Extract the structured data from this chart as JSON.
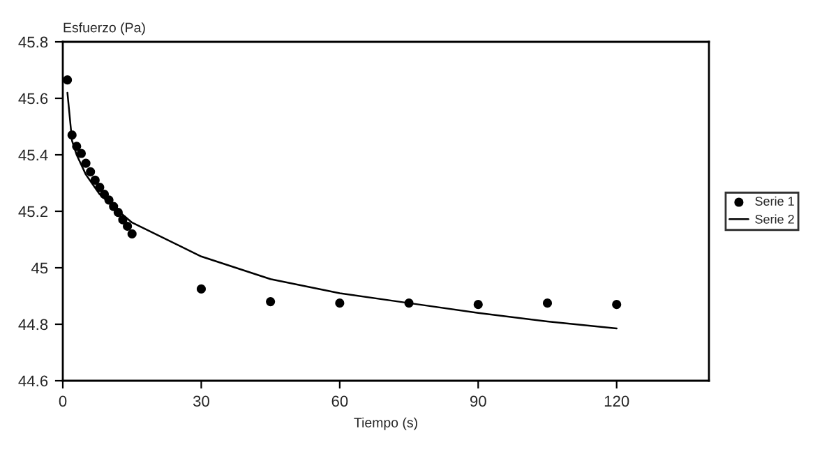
{
  "chart_data": {
    "type": "scatter",
    "xlabel": "Tiempo (s)",
    "ylabel": "Esfuerzo (Pa)",
    "xlim": [
      0,
      140
    ],
    "xticks": [
      0,
      30,
      60,
      90,
      120
    ],
    "ylim": [
      44.6,
      45.8
    ],
    "yticks": [
      44.6,
      44.8,
      {
        "value": 45,
        "label": "45"
      },
      45.2,
      45.4,
      45.6,
      45.8
    ],
    "grid": false,
    "legend": "right",
    "series": [
      {
        "name": "Serie 1",
        "marker": "circle",
        "color": "#000000",
        "x": [
          1,
          2,
          3,
          4,
          5,
          6,
          7,
          8,
          9,
          10,
          11,
          12,
          13,
          14,
          15,
          30,
          45,
          60,
          75,
          90,
          105,
          120
        ],
        "values": [
          45.665,
          45.47,
          45.43,
          45.405,
          45.37,
          45.34,
          45.31,
          45.285,
          45.26,
          45.24,
          45.217,
          45.196,
          45.17,
          45.147,
          45.12,
          44.925,
          44.88,
          44.875,
          44.875,
          44.87,
          44.875,
          44.87
        ]
      },
      {
        "name": "Serie 2",
        "type": "line",
        "line_style": "solid",
        "color": "#000000",
        "x": [
          1,
          2,
          3,
          5,
          8,
          10,
          15,
          30,
          45,
          60,
          75,
          90,
          105,
          120
        ],
        "values": [
          45.62,
          45.45,
          45.4,
          45.33,
          45.26,
          45.23,
          45.16,
          45.04,
          44.96,
          44.91,
          44.875,
          44.84,
          44.81,
          44.785
        ]
      }
    ]
  }
}
